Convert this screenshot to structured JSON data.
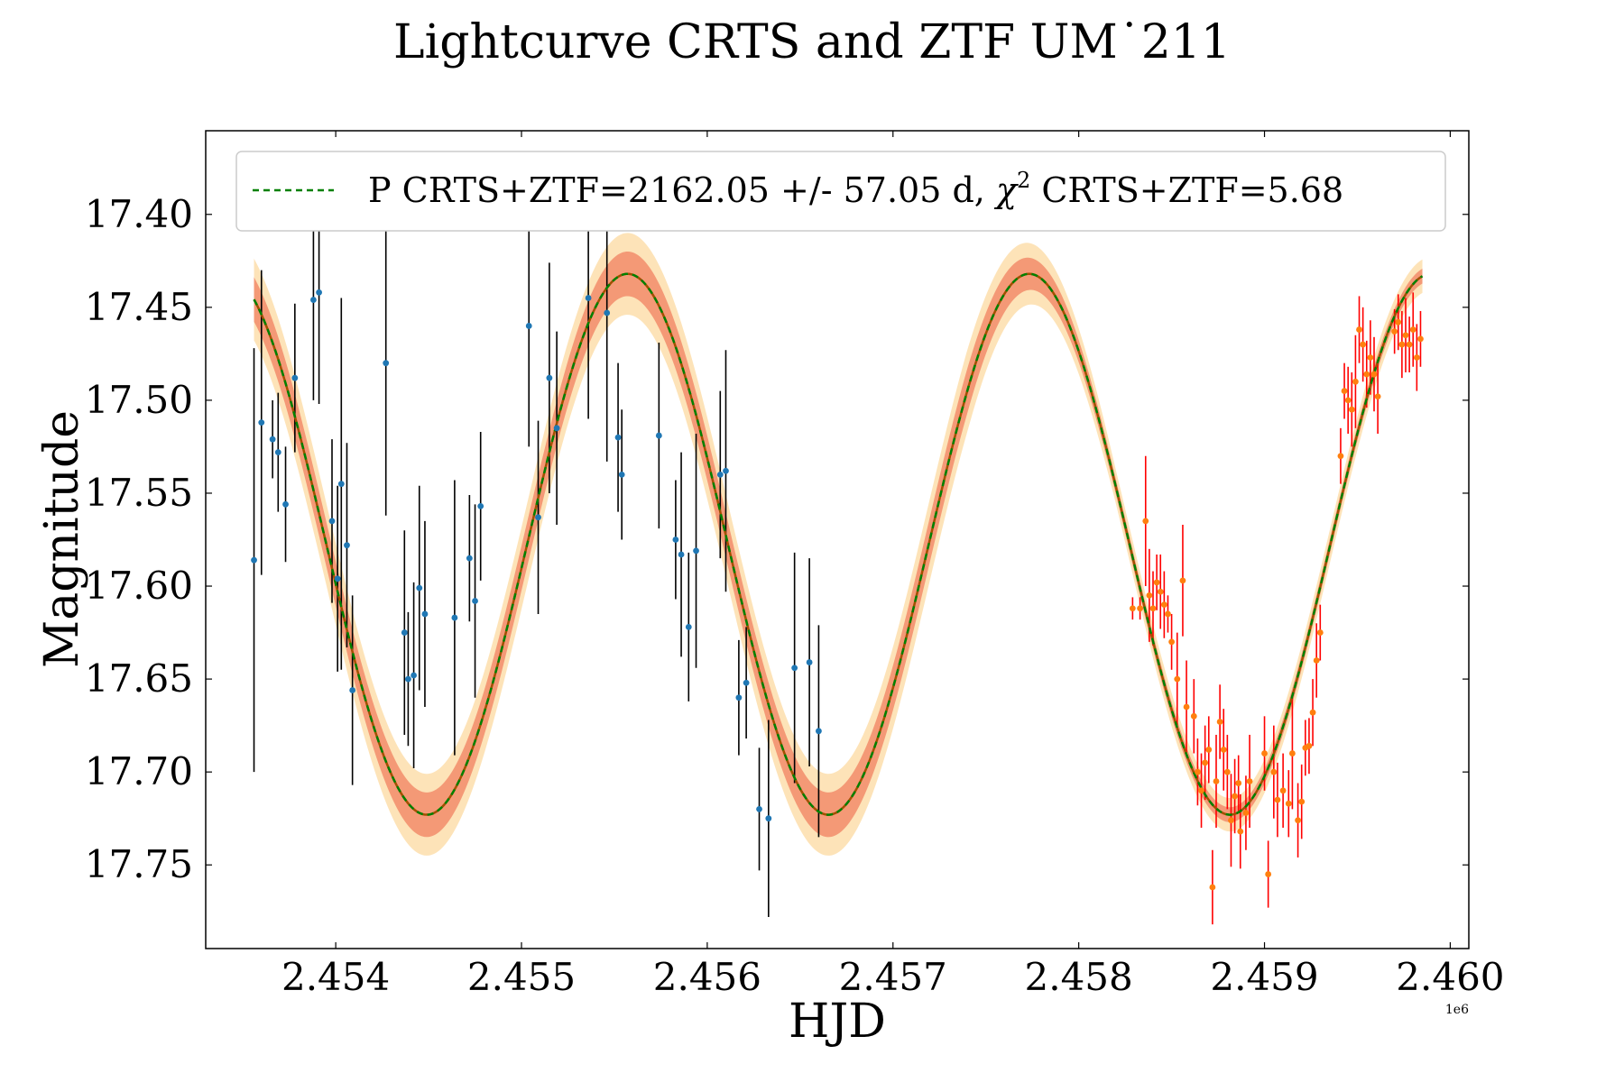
{
  "chart_data": {
    "type": "scatter",
    "title": "Lightcurve CRTS and ZTF UM˙211",
    "xlabel": "HJD",
    "ylabel": "Magnitude",
    "x_offset_label": "1e6",
    "xlim": [
      2453300,
      2460100
    ],
    "ylim": [
      17.795,
      17.355
    ],
    "y_inverted": true,
    "xticks": [
      2454000,
      2455000,
      2456000,
      2457000,
      2458000,
      2459000,
      2460000
    ],
    "xtick_labels": [
      "2.454",
      "2.455",
      "2.456",
      "2.457",
      "2.458",
      "2.459",
      "2.460"
    ],
    "yticks": [
      17.4,
      17.45,
      17.5,
      17.55,
      17.6,
      17.65,
      17.7,
      17.75
    ],
    "ytick_labels": [
      "17.40",
      "17.45",
      "17.50",
      "17.55",
      "17.60",
      "17.65",
      "17.70",
      "17.75"
    ],
    "legend": {
      "label_prefix": "P CRTS+ZTF=2162.05 +/- 57.05 d, ",
      "chi_symbol": "χ",
      "chi_exponent": "2",
      "label_suffix": " CRTS+ZTF=5.68",
      "placement": "top"
    },
    "model": {
      "name": "P CRTS+ZTF=2162.05 +/- 57.05 d, χ2 CRTS+ZTF=5.68",
      "period_days": 2162.05,
      "period_err": 57.05,
      "chi2": 5.68,
      "mean_mag": 17.5775,
      "amplitude": 0.1455,
      "min_time": 2454490,
      "x_start": 2453560,
      "x_end": 2459850,
      "band_inner_crts": 0.012,
      "band_outer_crts": 0.022,
      "band_inner_ztf": 0.004,
      "band_outer_ztf": 0.009,
      "color": "#008000",
      "line_style": "dashed"
    },
    "colors": {
      "crts_point": "#1f77b4",
      "crts_errorbar": "#000000",
      "ztf_point": "#ff7f0e",
      "ztf_errorbar": "#ff0000",
      "band_inner": "#f08060",
      "band_outer": "#fde0b0",
      "model_solid": "#a05000",
      "model_dashed": "#008000"
    },
    "series": [
      {
        "name": "CRTS",
        "points": [
          [
            2453560,
            17.586,
            0.114
          ],
          [
            2453600,
            17.512,
            0.082
          ],
          [
            2453660,
            17.521,
            0.021
          ],
          [
            2453690,
            17.528,
            0.032
          ],
          [
            2453730,
            17.556,
            0.031
          ],
          [
            2453780,
            17.488,
            0.04
          ],
          [
            2453880,
            17.446,
            0.054
          ],
          [
            2453910,
            17.442,
            0.06
          ],
          [
            2453980,
            17.565,
            0.044
          ],
          [
            2454010,
            17.596,
            0.05
          ],
          [
            2454030,
            17.545,
            0.1
          ],
          [
            2454060,
            17.578,
            0.055
          ],
          [
            2454090,
            17.656,
            0.051
          ],
          [
            2454270,
            17.48,
            0.082
          ],
          [
            2454370,
            17.625,
            0.055
          ],
          [
            2454390,
            17.65,
            0.036
          ],
          [
            2454420,
            17.648,
            0.05
          ],
          [
            2454450,
            17.601,
            0.055
          ],
          [
            2454480,
            17.615,
            0.05
          ],
          [
            2454640,
            17.617,
            0.074
          ],
          [
            2454720,
            17.585,
            0.034
          ],
          [
            2454750,
            17.608,
            0.052
          ],
          [
            2454780,
            17.557,
            0.04
          ],
          [
            2455040,
            17.46,
            0.065
          ],
          [
            2455090,
            17.563,
            0.052
          ],
          [
            2455150,
            17.488,
            0.062
          ],
          [
            2455190,
            17.515,
            0.052
          ],
          [
            2455360,
            17.445,
            0.065
          ],
          [
            2455460,
            17.453,
            0.08
          ],
          [
            2455520,
            17.52,
            0.04
          ],
          [
            2455540,
            17.54,
            0.035
          ],
          [
            2455740,
            17.519,
            0.05
          ],
          [
            2455830,
            17.575,
            0.032
          ],
          [
            2455860,
            17.583,
            0.055
          ],
          [
            2455900,
            17.622,
            0.04
          ],
          [
            2455940,
            17.581,
            0.063
          ],
          [
            2456070,
            17.54,
            0.045
          ],
          [
            2456100,
            17.538,
            0.065
          ],
          [
            2456170,
            17.66,
            0.031
          ],
          [
            2456210,
            17.652,
            0.03
          ],
          [
            2456280,
            17.72,
            0.033
          ],
          [
            2456330,
            17.725,
            0.053
          ],
          [
            2456470,
            17.644,
            0.062
          ],
          [
            2456550,
            17.641,
            0.056
          ],
          [
            2456600,
            17.678,
            0.057
          ]
        ]
      },
      {
        "name": "ZTF",
        "points": [
          [
            2458290,
            17.612,
            0.006
          ],
          [
            2458330,
            17.612,
            0.006
          ],
          [
            2458360,
            17.565,
            0.035
          ],
          [
            2458380,
            17.605,
            0.025
          ],
          [
            2458400,
            17.612,
            0.02
          ],
          [
            2458420,
            17.598,
            0.015
          ],
          [
            2458440,
            17.603,
            0.02
          ],
          [
            2458460,
            17.61,
            0.018
          ],
          [
            2458480,
            17.615,
            0.01
          ],
          [
            2458500,
            17.63,
            0.015
          ],
          [
            2458530,
            17.65,
            0.025
          ],
          [
            2458560,
            17.597,
            0.03
          ],
          [
            2458580,
            17.665,
            0.025
          ],
          [
            2458620,
            17.67,
            0.02
          ],
          [
            2458640,
            17.7,
            0.018
          ],
          [
            2458660,
            17.71,
            0.02
          ],
          [
            2458680,
            17.695,
            0.02
          ],
          [
            2458700,
            17.688,
            0.018
          ],
          [
            2458720,
            17.762,
            0.02
          ],
          [
            2458740,
            17.705,
            0.025
          ],
          [
            2458760,
            17.673,
            0.02
          ],
          [
            2458780,
            17.688,
            0.022
          ],
          [
            2458800,
            17.7,
            0.02
          ],
          [
            2458820,
            17.726,
            0.025
          ],
          [
            2458840,
            17.713,
            0.02
          ],
          [
            2458860,
            17.706,
            0.015
          ],
          [
            2458870,
            17.732,
            0.02
          ],
          [
            2458900,
            17.722,
            0.02
          ],
          [
            2458920,
            17.705,
            0.025
          ],
          [
            2459000,
            17.69,
            0.02
          ],
          [
            2459020,
            17.755,
            0.018
          ],
          [
            2459050,
            17.7,
            0.025
          ],
          [
            2459070,
            17.715,
            0.02
          ],
          [
            2459100,
            17.71,
            0.02
          ],
          [
            2459130,
            17.717,
            0.018
          ],
          [
            2459150,
            17.69,
            0.03
          ],
          [
            2459180,
            17.726,
            0.02
          ],
          [
            2459200,
            17.716,
            0.02
          ],
          [
            2459220,
            17.687,
            0.015
          ],
          [
            2459240,
            17.686,
            0.015
          ],
          [
            2459260,
            17.668,
            0.018
          ],
          [
            2459280,
            17.64,
            0.02
          ],
          [
            2459300,
            17.625,
            0.015
          ],
          [
            2459410,
            17.53,
            0.015
          ],
          [
            2459430,
            17.495,
            0.015
          ],
          [
            2459450,
            17.5,
            0.018
          ],
          [
            2459470,
            17.505,
            0.02
          ],
          [
            2459490,
            17.49,
            0.025
          ],
          [
            2459510,
            17.462,
            0.018
          ],
          [
            2459530,
            17.47,
            0.02
          ],
          [
            2459550,
            17.486,
            0.018
          ],
          [
            2459570,
            17.477,
            0.02
          ],
          [
            2459590,
            17.486,
            0.02
          ],
          [
            2459610,
            17.498,
            0.02
          ],
          [
            2459700,
            17.463,
            0.012
          ],
          [
            2459720,
            17.458,
            0.015
          ],
          [
            2459740,
            17.47,
            0.018
          ],
          [
            2459760,
            17.465,
            0.02
          ],
          [
            2459780,
            17.47,
            0.015
          ],
          [
            2459800,
            17.462,
            0.02
          ],
          [
            2459820,
            17.477,
            0.018
          ],
          [
            2459840,
            17.467,
            0.015
          ]
        ]
      }
    ]
  }
}
